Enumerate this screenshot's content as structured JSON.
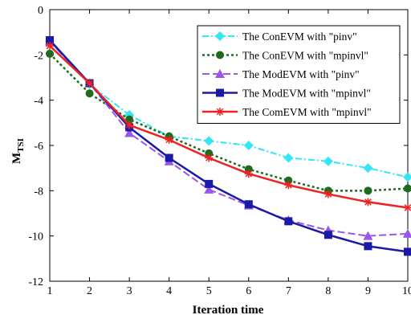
{
  "chart_data": {
    "type": "line",
    "title": "",
    "xlabel": "Iteration time",
    "ylabel": "M",
    "ylabel_subscript": "TSI",
    "x": [
      1,
      2,
      3,
      4,
      5,
      6,
      7,
      8,
      9,
      10
    ],
    "xlim": [
      1,
      10
    ],
    "ylim": [
      -12,
      0
    ],
    "xticks": [
      "1",
      "2",
      "3",
      "4",
      "5",
      "6",
      "7",
      "8",
      "9",
      "10"
    ],
    "yticks": [
      "0",
      "-2",
      "-4",
      "-6",
      "-8",
      "-10",
      "-12"
    ],
    "ytick_values": [
      0,
      -2,
      -4,
      -6,
      -8,
      -10,
      -12
    ],
    "grid": false,
    "legend_position": "top-right",
    "series": [
      {
        "name": "The ConEVM with \"pinv\"",
        "color": "#33e6f2",
        "dash": "8,3,2,3",
        "marker": "diamond",
        "width": 2,
        "values": [
          -1.4,
          -3.3,
          -4.65,
          -5.6,
          -5.8,
          -6.0,
          -6.55,
          -6.7,
          -7.0,
          -7.4
        ]
      },
      {
        "name": "The ConEVM with \"mpinvl\"",
        "color": "#1e6b1e",
        "dash": "3,3",
        "marker": "circle",
        "width": 2.5,
        "values": [
          -1.95,
          -3.7,
          -4.85,
          -5.6,
          -6.35,
          -7.05,
          -7.55,
          -8.0,
          -8.0,
          -7.9
        ]
      },
      {
        "name": "The ModEVM with \"pinv\"",
        "color": "#9955ee",
        "dash": "9,4",
        "marker": "triangle",
        "width": 2,
        "values": [
          -1.4,
          -3.25,
          -5.45,
          -6.7,
          -7.95,
          -8.65,
          -9.3,
          -9.75,
          -10.0,
          -9.9
        ]
      },
      {
        "name": "The ModEVM with \"mpinvl\"",
        "color": "#1a1aa6",
        "dash": "",
        "marker": "square",
        "width": 2.5,
        "values": [
          -1.35,
          -3.25,
          -5.2,
          -6.55,
          -7.7,
          -8.6,
          -9.35,
          -9.95,
          -10.45,
          -10.7
        ]
      },
      {
        "name": "The ComEVM with \"mpinvl\"",
        "color": "#ee2222",
        "dash": "",
        "marker": "star",
        "width": 2.5,
        "values": [
          -1.6,
          -3.25,
          -5.1,
          -5.75,
          -6.55,
          -7.25,
          -7.75,
          -8.15,
          -8.5,
          -8.75
        ]
      }
    ]
  }
}
